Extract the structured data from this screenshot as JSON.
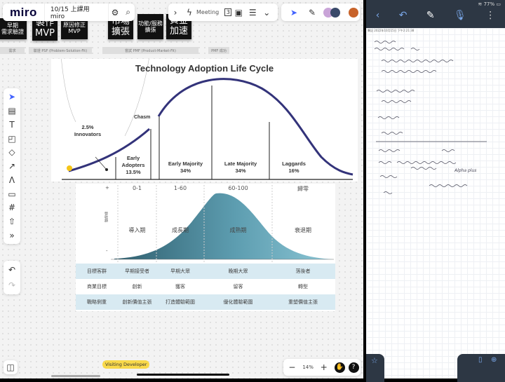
{
  "app": {
    "logo": "miro",
    "board_title": "10/15 上課用 miro"
  },
  "top_right_toolbar": {
    "meeting_label": "Meeting",
    "frame_count": "3"
  },
  "stickies": [
    {
      "line1": "早期",
      "line2": "需求驗證"
    },
    {
      "line1": "製作",
      "line2": "MVP"
    },
    {
      "line1": "原因修正",
      "line2": "MVP"
    },
    {
      "line1": "市場",
      "line2": "擴張"
    },
    {
      "line1": "功能/服務",
      "line2": "擴張"
    },
    {
      "line1": "資金",
      "line2": "加速"
    }
  ],
  "stage_labels": [
    "需求",
    "驗證 PSF (Problem-Solution-Fit)",
    "嘗試 PMF (Product-Market-Fit)",
    "PMF 成功"
  ],
  "tech_adoption": {
    "title": "Technology Adoption Life Cycle",
    "chasm": "Chasm",
    "segments": [
      {
        "name": "Innovators",
        "pct": "2.5%"
      },
      {
        "name": "Early Adopters",
        "pct": "13.5%"
      },
      {
        "name": "Early Majority",
        "pct": "34%"
      },
      {
        "name": "Late Majority",
        "pct": "34%"
      },
      {
        "name": "Laggards",
        "pct": "16%"
      }
    ]
  },
  "lifecycle": {
    "plus": "+",
    "minus": "-",
    "ylabel": "營收額",
    "ranges": [
      "0-1",
      "1-60",
      "60-100",
      "歸零"
    ],
    "phases": [
      "導入期",
      "成長期",
      "成熟期",
      "衰退期"
    ],
    "rows": [
      {
        "header": "目標客群",
        "cells": [
          "早期接受者",
          "早期大眾",
          "晚期大眾",
          "落後者"
        ]
      },
      {
        "header": "商業目標",
        "cells": [
          "創新",
          "獲客",
          "留客",
          "轉型"
        ]
      },
      {
        "header": "戰略側重",
        "cells": [
          "創新價值主張",
          "打造體驗範圍",
          "優化體驗範圍",
          "重塑價值主張"
        ]
      }
    ]
  },
  "bottom": {
    "visitor_badge": "Visiting Developer",
    "zoom": "14%"
  },
  "ipad": {
    "battery": "77%",
    "note_header": "筆記 2022年10月15日 下午2:21:38",
    "handwriting_sample": "Alpha plus"
  },
  "colors": {
    "miro_accent": "#4262ff",
    "curve": "#33337a",
    "teal": "#4e9aae",
    "ipad_bar": "#2d3744"
  }
}
